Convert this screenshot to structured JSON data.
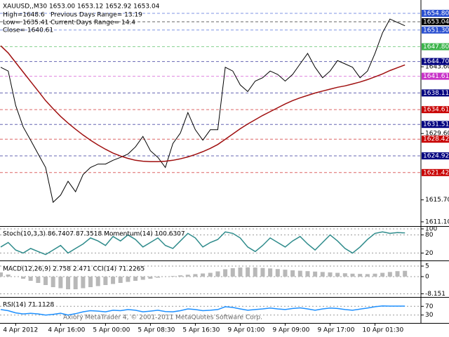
{
  "chart_data": [
    {
      "type": "line",
      "title": "XAUUSD,,M30  1653.00 1653.12 1652.92 1653.04",
      "annotations": [
        "High=1648.6",
        "Previous Days Range= 13.19",
        "Low= 1635.41",
        "Current Days Range= 14.4",
        "Close= 1640.61"
      ],
      "categories": [
        null,
        null,
        "4 Apr 2012",
        null,
        null,
        null,
        null,
        null,
        "4 Apr 16:00",
        null,
        null,
        null,
        null,
        null,
        "5 Apr 00:00",
        null,
        null,
        null,
        null,
        null,
        "5 Apr 08:30",
        null,
        null,
        null,
        null,
        null,
        "5 Apr 16:30",
        null,
        null,
        null,
        null,
        null,
        "9 Apr 01:00",
        null,
        null,
        null,
        null,
        null,
        "9 Apr 09:00",
        null,
        null,
        null,
        null,
        null,
        "9 Apr 17:00",
        null,
        null,
        null,
        null,
        null,
        "10 Apr 01:30",
        null,
        null,
        null,
        null
      ],
      "series": [
        {
          "color": "#000000",
          "values": [
            1643.5,
            1642.7,
            1635.5,
            1631,
            1628.2,
            1625.3,
            1622.5,
            1615.2,
            1616.7,
            1619.6,
            1617.4,
            1621,
            1622.5,
            1623.2,
            1623.2,
            1624,
            1624.6,
            1625.3,
            1626.8,
            1629,
            1626,
            1624.6,
            1622.5,
            1627.5,
            1629.7,
            1634,
            1630.4,
            1628.2,
            1630.4,
            1630.4,
            1643.5,
            1642.7,
            1639.8,
            1638.4,
            1640.6,
            1641.3,
            1642.7,
            1642,
            1640.6,
            1642,
            1644.2,
            1646.4,
            1643.5,
            1641.3,
            1642.7,
            1644.9,
            1644.2,
            1643.5,
            1641.3,
            1642.7,
            1646.4,
            1650.7,
            1653.6,
            1652.9,
            1652.2
          ]
        },
        {
          "color": "#a01010",
          "values": [
            1648,
            1646.5,
            1644.5,
            1642.5,
            1640.5,
            1638.5,
            1636.5,
            1634.8,
            1633.2,
            1631.8,
            1630.5,
            1629.3,
            1628.2,
            1627.2,
            1626.3,
            1625.5,
            1624.9,
            1624.4,
            1624.0,
            1623.8,
            1623.7,
            1623.7,
            1623.8,
            1624.0,
            1624.3,
            1624.7,
            1625.2,
            1625.8,
            1626.5,
            1627.3,
            1628.4,
            1629.5,
            1630.6,
            1631.6,
            1632.5,
            1633.4,
            1634.2,
            1635.0,
            1635.8,
            1636.5,
            1637.1,
            1637.6,
            1638.1,
            1638.5,
            1638.9,
            1639.3,
            1639.6,
            1640.0,
            1640.4,
            1640.9,
            1641.5,
            1642.1,
            1642.8,
            1643.4,
            1644.0
          ]
        }
      ],
      "ylim": [
        1610.5,
        1657.3
      ],
      "yticks": [
        {
          "value": 1643.6,
          "label": "1643.60"
        },
        {
          "value": 1629.6,
          "label": "1629.60"
        },
        {
          "value": 1615.7,
          "label": "1615.70"
        },
        {
          "value": 1611.1,
          "label": "1611.10"
        }
      ],
      "levels": [
        {
          "value": 1654.8,
          "label": "1654.80",
          "color": "#2a4fd0"
        },
        {
          "value": 1653.04,
          "color": "#000000"
        },
        {
          "value": 1651.3,
          "label": "1651.30",
          "color": "#2a4fd0"
        },
        {
          "value": 1647.8,
          "label": "1647.80",
          "color": "#3cb44b"
        },
        {
          "value": 1644.7,
          "label": "1644.70",
          "color": "#000080"
        },
        {
          "value": 1641.61,
          "color": "#c832c8"
        },
        {
          "value": 1638.11,
          "color": "#000080"
        },
        {
          "value": 1634.61,
          "color": "#c80000"
        },
        {
          "value": 1631.51,
          "color": "#000080"
        },
        {
          "value": 1628.42,
          "color": "#c80000"
        },
        {
          "value": 1624.92,
          "color": "#000080"
        },
        {
          "value": 1621.42,
          "color": "#c80000"
        }
      ]
    },
    {
      "type": "line",
      "title": "Stoch(10,3,3) 86.7407 87.3518  Momentum(14) 100.6307",
      "series": [
        {
          "color": "#2e8b8b",
          "values": [
            40,
            55,
            30,
            20,
            35,
            25,
            15,
            30,
            45,
            20,
            35,
            50,
            70,
            60,
            45,
            75,
            60,
            80,
            65,
            40,
            55,
            70,
            45,
            35,
            60,
            85,
            70,
            40,
            55,
            65,
            90,
            85,
            70,
            40,
            25,
            45,
            70,
            55,
            40,
            60,
            75,
            50,
            30,
            55,
            80,
            60,
            35,
            20,
            40,
            65,
            85,
            90,
            85,
            88,
            86.74
          ]
        }
      ],
      "ylim": [
        0,
        100
      ],
      "yticks": [
        100,
        80,
        20
      ]
    },
    {
      "type": "bar",
      "title": "MACD(12,26,9) 2.758 2.471  CCI(14) 71.2265",
      "color": "#b8b8b8",
      "values": [
        2,
        1,
        0,
        -1,
        -2,
        -3,
        -4,
        -5,
        -5.5,
        -6,
        -6,
        -5.5,
        -5,
        -4.5,
        -4,
        -3.5,
        -3,
        -2.5,
        -2,
        -1.5,
        -1,
        -0.5,
        0,
        0.3,
        0.6,
        0.9,
        1.2,
        1.5,
        1.8,
        2.5,
        3.5,
        4,
        4.3,
        4.4,
        4.3,
        4.1,
        3.9,
        3.6,
        3.3,
        3,
        2.8,
        2.6,
        2.4,
        2.2,
        2,
        1.8,
        1.6,
        1.4,
        1.3,
        1.2,
        1.4,
        1.8,
        2.2,
        2.6,
        2.758
      ],
      "ylim": [
        -9,
        6
      ],
      "yticks": [
        5,
        0,
        -8.151
      ]
    },
    {
      "type": "line",
      "title": "RSI(14) 71.1128",
      "series": [
        {
          "color": "#1e90ff",
          "values": [
            55,
            50,
            40,
            35,
            38,
            35,
            30,
            33,
            38,
            30,
            36,
            45,
            50,
            48,
            45,
            52,
            50,
            55,
            52,
            45,
            48,
            52,
            46,
            45,
            50,
            58,
            55,
            50,
            52,
            55,
            68,
            65,
            58,
            52,
            55,
            58,
            62,
            58,
            55,
            60,
            63,
            58,
            52,
            58,
            62,
            60,
            55,
            52,
            57,
            62,
            68,
            72,
            71,
            71,
            71.1128
          ]
        }
      ],
      "ylim": [
        0,
        100
      ],
      "yticks": [
        70,
        30
      ]
    }
  ],
  "footer": "Axiory MetaTrader 4, © 2001-2011 MetaQuotes Software Corp."
}
